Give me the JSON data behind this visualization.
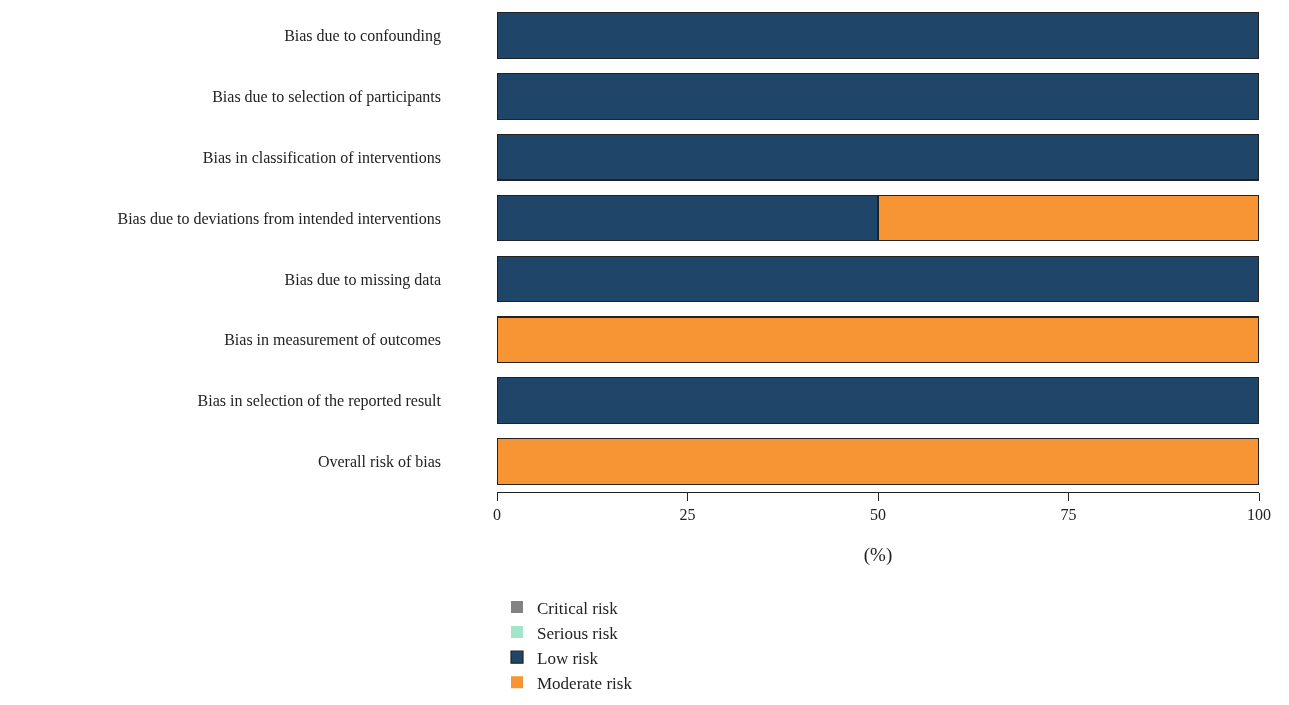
{
  "chart_data": {
    "type": "bar",
    "orientation": "horizontal",
    "stacked": true,
    "xlabel": "(%)",
    "categories": [
      "Bias due to confounding",
      "Bias due to selection of participants",
      "Bias in classification of interventions",
      "Bias due to deviations from intended interventions",
      "Bias due to missing data",
      "Bias in measurement of outcomes",
      "Bias in selection of the reported result",
      "Overall risk of bias"
    ],
    "series": [
      {
        "name": "Critical risk",
        "color": "#848280",
        "values": [
          0,
          0,
          0,
          0,
          0,
          0,
          0,
          0
        ]
      },
      {
        "name": "Serious risk",
        "color": "#a3e5cb",
        "values": [
          0,
          0,
          0,
          0,
          0,
          0,
          0,
          0
        ]
      },
      {
        "name": "Low risk",
        "color": "#1f4668",
        "values": [
          100,
          100,
          100,
          50,
          100,
          0,
          100,
          0
        ]
      },
      {
        "name": "Moderate risk",
        "color": "#f79433",
        "values": [
          0,
          0,
          0,
          50,
          0,
          100,
          0,
          100
        ]
      }
    ],
    "xlim": [
      0,
      100
    ],
    "xticks": [
      0,
      25,
      50,
      75,
      100
    ],
    "legend": "bottom"
  }
}
